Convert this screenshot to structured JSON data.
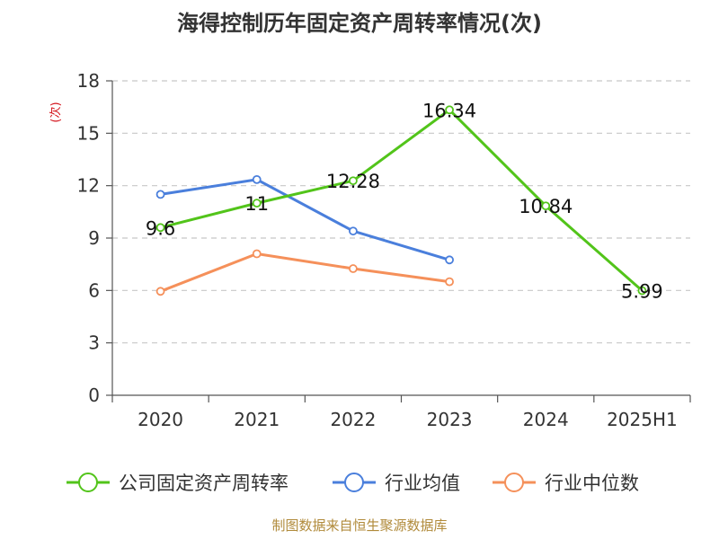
{
  "chart_data": {
    "type": "line",
    "title": "海得控制历年固定资产周转率情况(次)",
    "ylabel": "(次)",
    "categories": [
      "2020",
      "2021",
      "2022",
      "2023",
      "2024",
      "2025H1"
    ],
    "ylim": [
      0,
      18
    ],
    "yticks": [
      0,
      3,
      6,
      9,
      12,
      15,
      18
    ],
    "grid": true,
    "legend_position": "bottom",
    "series": [
      {
        "name": "公司固定资产周转率",
        "color": "#52c41a",
        "values": [
          9.6,
          11,
          12.28,
          16.34,
          10.84,
          5.99
        ],
        "labels": [
          "9.6",
          "11",
          "12.28",
          "16.34",
          "10.84",
          "5.99"
        ]
      },
      {
        "name": "行业均值",
        "color": "#4a7fdc",
        "values": [
          11.5,
          12.35,
          9.4,
          7.75,
          null,
          null
        ]
      },
      {
        "name": "行业中位数",
        "color": "#f5905a",
        "values": [
          5.95,
          8.1,
          7.25,
          6.5,
          null,
          null
        ]
      }
    ]
  },
  "source": "制图数据来自恒生聚源数据库"
}
